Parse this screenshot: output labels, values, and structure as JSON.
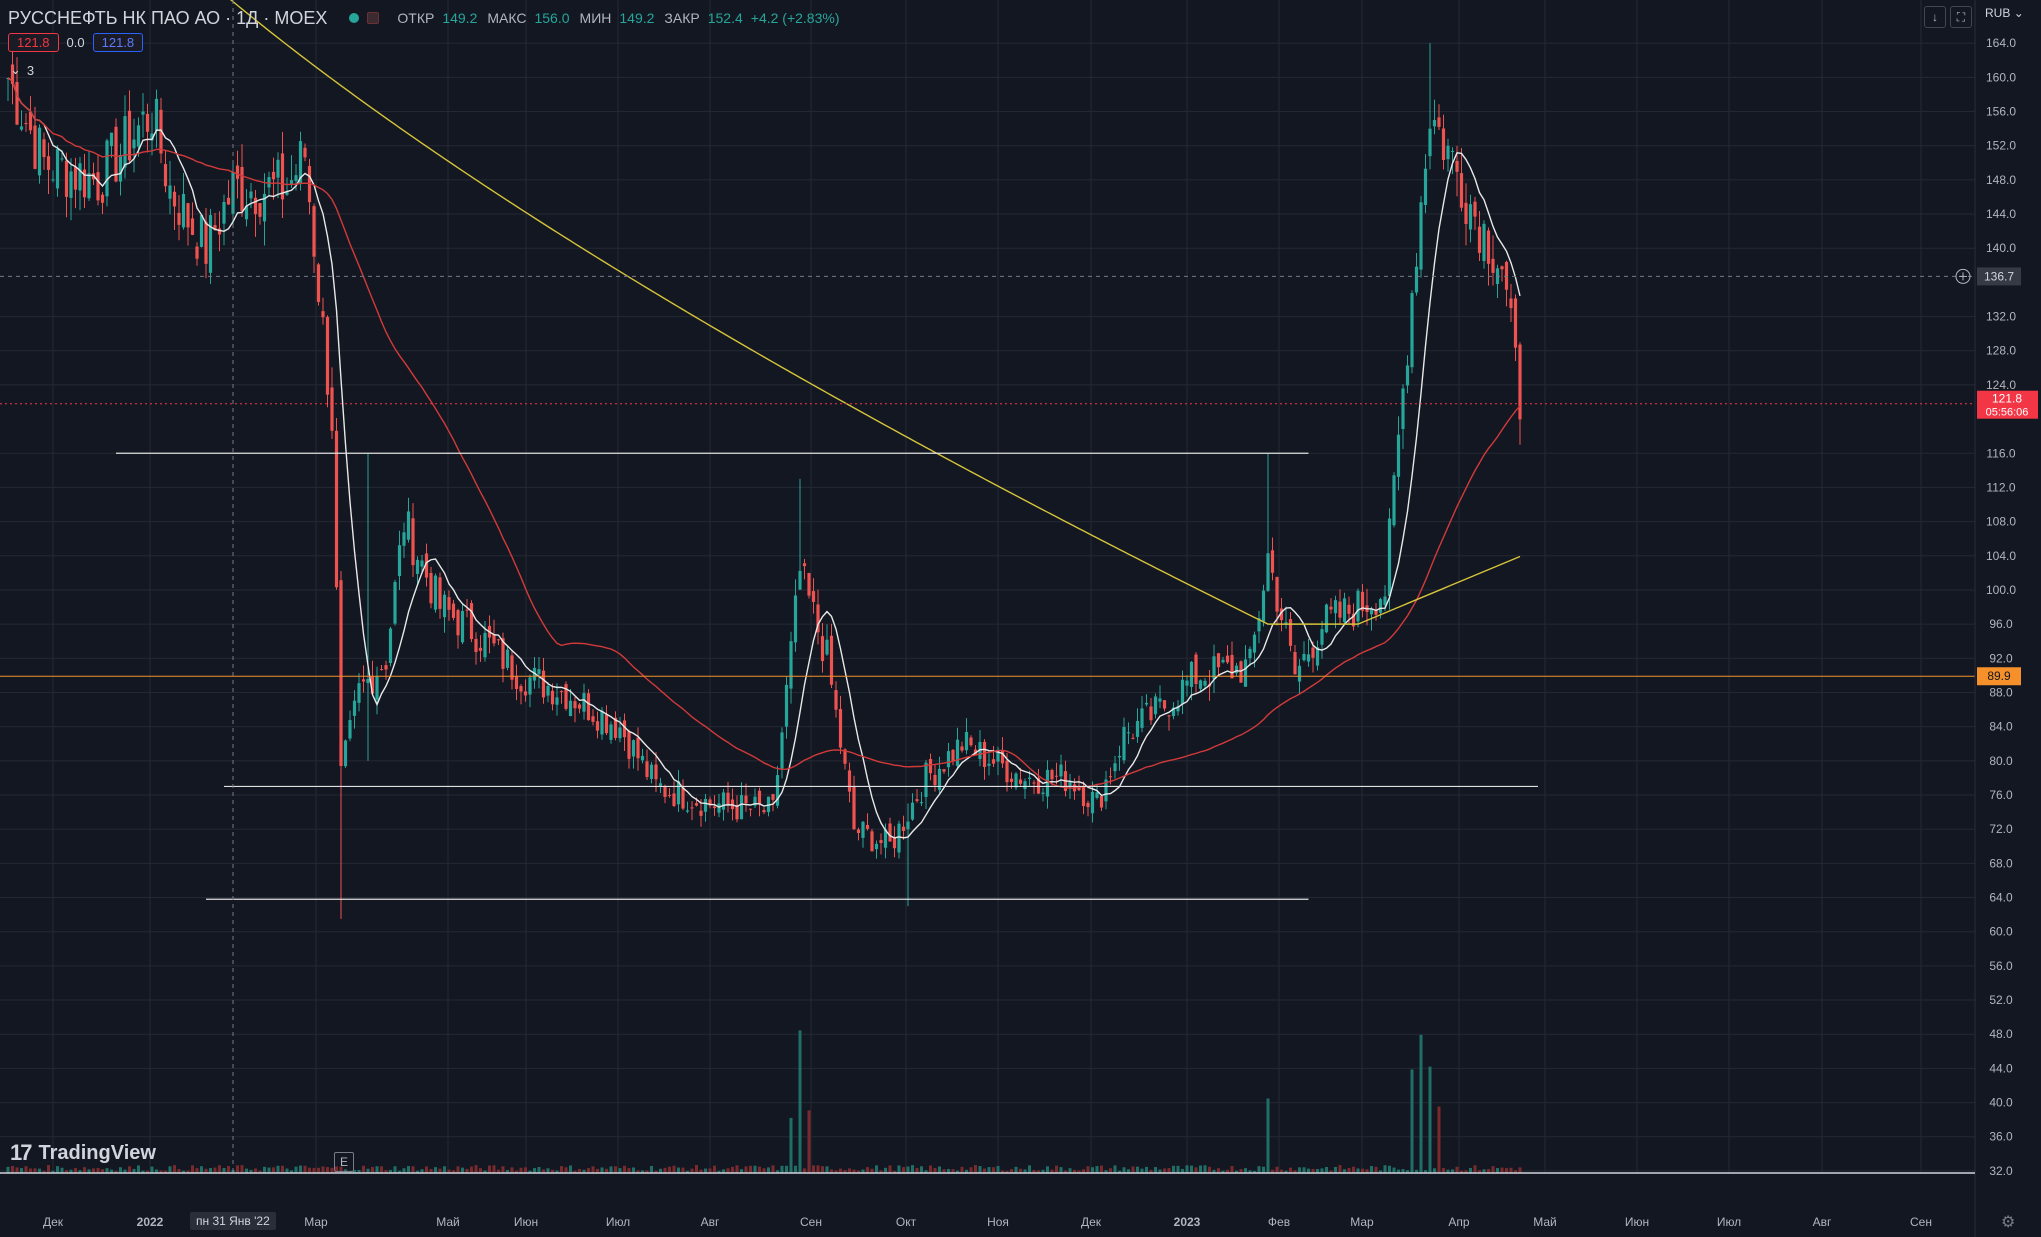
{
  "header": {
    "symbol": "РУССНЕФТЬ НК ПАО АО · 1Д · MOEX",
    "open_label": "ОТКР",
    "open_value": "149.2",
    "high_label": "МАКС",
    "high_value": "156.0",
    "low_label": "МИН",
    "low_value": "149.2",
    "close_label": "ЗАКР",
    "close_value": "152.4",
    "change": "+4.2 (+2.83%)",
    "bid": "121.8",
    "spread": "0.0",
    "ask": "121.8",
    "indicators_toggle": "3"
  },
  "branding": {
    "logo_text": "TradingView",
    "logo_mark": "17",
    "event_marker": "E"
  },
  "toolbar": {
    "currency": "RUB",
    "currency_chevron": "⌄",
    "download_icon": "↓",
    "fullscreen_icon": "⛶"
  },
  "crosshair": {
    "date_label": "пн 31 Янв '22",
    "price_label": "136.7"
  },
  "last_price": {
    "price": "121.8",
    "countdown": "05:56:06"
  },
  "level_label": "89.9",
  "colors": {
    "background": "#131722",
    "grid": "#242833",
    "up": "#26a69a",
    "down": "#ef5350",
    "ma_white": "#e8e8e8",
    "ma_red": "#d23a3a",
    "ma_yellow": "#d6c43a",
    "level_orange": "#f5902a",
    "hlines": "#e0e0e0",
    "last_price": "#f23645"
  },
  "chart_data": {
    "type": "candlestick",
    "timeframe": "1D",
    "x_labels": [
      "Дек",
      "2022",
      "Мар",
      "Май",
      "Июн",
      "Июл",
      "Авг",
      "Сен",
      "Окт",
      "Ноя",
      "Дек",
      "2023",
      "Фев",
      "Мар",
      "Апр",
      "Май",
      "Июн",
      "Июл",
      "Авг",
      "Сен"
    ],
    "y_ticks": [
      "164.0",
      "160.0",
      "156.0",
      "152.0",
      "148.0",
      "144.0",
      "140.0",
      "132.0",
      "128.0",
      "124.0",
      "116.0",
      "112.0",
      "108.0",
      "104.0",
      "100.0",
      "96.0",
      "92.0",
      "88.0",
      "84.0",
      "80.0",
      "76.0",
      "72.0",
      "68.0",
      "64.0",
      "60.0",
      "56.0",
      "52.0",
      "48.0",
      "44.0",
      "40.0",
      "36.0",
      "32.0"
    ],
    "y_range": [
      30.0,
      168.0
    ],
    "anchors": [
      {
        "d": 0,
        "p": 160
      },
      {
        "d": 8,
        "p": 150
      },
      {
        "d": 20,
        "p": 148
      },
      {
        "d": 32,
        "p": 156
      },
      {
        "d": 36,
        "p": 147
      },
      {
        "d": 44,
        "p": 140
      },
      {
        "d": 50,
        "p": 147
      },
      {
        "d": 62,
        "p": 147
      },
      {
        "d": 66,
        "p": 151
      },
      {
        "d": 72,
        "p": 120
      },
      {
        "d": 74,
        "p": 78
      },
      {
        "d": 78,
        "p": 88
      },
      {
        "d": 84,
        "p": 92
      },
      {
        "d": 88,
        "p": 108
      },
      {
        "d": 96,
        "p": 98
      },
      {
        "d": 104,
        "p": 95
      },
      {
        "d": 114,
        "p": 90
      },
      {
        "d": 124,
        "p": 88
      },
      {
        "d": 136,
        "p": 84
      },
      {
        "d": 144,
        "p": 77
      },
      {
        "d": 156,
        "p": 75
      },
      {
        "d": 170,
        "p": 74
      },
      {
        "d": 176,
        "p": 102
      },
      {
        "d": 182,
        "p": 92
      },
      {
        "d": 188,
        "p": 72
      },
      {
        "d": 196,
        "p": 70
      },
      {
        "d": 204,
        "p": 78
      },
      {
        "d": 212,
        "p": 82
      },
      {
        "d": 226,
        "p": 78
      },
      {
        "d": 236,
        "p": 78
      },
      {
        "d": 242,
        "p": 75
      },
      {
        "d": 248,
        "p": 83
      },
      {
        "d": 256,
        "p": 86
      },
      {
        "d": 264,
        "p": 90
      },
      {
        "d": 276,
        "p": 91
      },
      {
        "d": 280,
        "p": 104
      },
      {
        "d": 286,
        "p": 90
      },
      {
        "d": 292,
        "p": 96
      },
      {
        "d": 300,
        "p": 98
      },
      {
        "d": 306,
        "p": 100
      },
      {
        "d": 312,
        "p": 135
      },
      {
        "d": 316,
        "p": 156
      },
      {
        "d": 322,
        "p": 149
      },
      {
        "d": 326,
        "p": 144
      },
      {
        "d": 332,
        "p": 138
      },
      {
        "d": 336,
        "p": 122
      }
    ],
    "moving_averages": [
      {
        "color": "white",
        "period": 9
      },
      {
        "color": "red",
        "period": 50
      },
      {
        "color": "yellow",
        "period": 200
      }
    ],
    "horizontal_levels": [
      {
        "price": 116.0,
        "from_day": 24,
        "to_day": 289
      },
      {
        "price": 77.0,
        "from_day": 48,
        "to_day": 340
      },
      {
        "price": 63.8,
        "from_day": 44,
        "to_day": 289
      },
      {
        "price": 89.9,
        "full_width": true,
        "color": "orange"
      }
    ]
  }
}
